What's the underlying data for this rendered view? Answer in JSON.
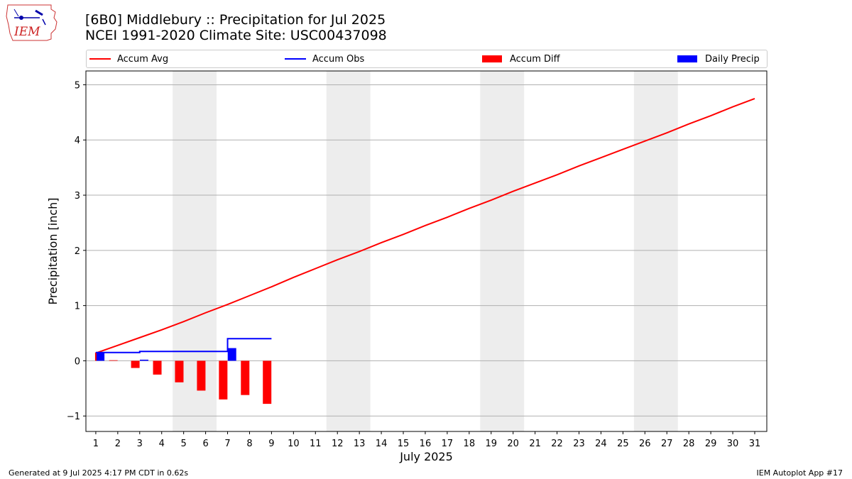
{
  "header": {
    "title_line1": "[6B0] Middlebury :: Precipitation for Jul 2025",
    "title_line2": "NCEI 1991-2020 Climate Site: USC00437098",
    "logo_text": "IEM"
  },
  "legend": {
    "accum_avg": "Accum Avg",
    "accum_obs": "Accum Obs",
    "accum_diff": "Accum Diff",
    "daily_precip": "Daily Precip"
  },
  "footer": {
    "generated": "Generated at 9 Jul 2025 4:17 PM CDT in 0.62s",
    "app": "IEM Autoplot App #17"
  },
  "colors": {
    "avg": "#ff0000",
    "obs": "#0000ff",
    "diff": "#ff0000",
    "daily": "#0000ff",
    "weekend_shade": "#ededed",
    "grid": "#b0b0b0"
  },
  "chart_data": {
    "type": "line",
    "xlabel": "July 2025",
    "ylabel": "Precipitation [inch]",
    "ylim": [
      -1.28,
      5.25
    ],
    "xlim": [
      0.55,
      31.55
    ],
    "yticks": [
      -1,
      0,
      1,
      2,
      3,
      4,
      5
    ],
    "ytick_labels": [
      "−1",
      "0",
      "1",
      "2",
      "3",
      "4",
      "5"
    ],
    "xticks": [
      1,
      2,
      3,
      4,
      5,
      6,
      7,
      8,
      9,
      10,
      11,
      12,
      13,
      14,
      15,
      16,
      17,
      18,
      19,
      20,
      21,
      22,
      23,
      24,
      25,
      26,
      27,
      28,
      29,
      30,
      31
    ],
    "grid": "horizontal",
    "legend_position": "top",
    "weekend_shading": [
      [
        4.5,
        6.5
      ],
      [
        11.5,
        13.5
      ],
      [
        18.5,
        20.5
      ],
      [
        25.5,
        27.5
      ]
    ],
    "accum_avg": {
      "x": [
        1,
        2,
        3,
        4,
        5,
        6,
        7,
        8,
        9,
        10,
        11,
        12,
        13,
        14,
        15,
        16,
        17,
        18,
        19,
        20,
        21,
        22,
        23,
        24,
        25,
        26,
        27,
        28,
        29,
        30,
        31
      ],
      "values": [
        0.14,
        0.28,
        0.42,
        0.56,
        0.71,
        0.87,
        1.02,
        1.18,
        1.34,
        1.51,
        1.67,
        1.83,
        1.98,
        2.14,
        2.29,
        2.45,
        2.6,
        2.76,
        2.91,
        3.07,
        3.22,
        3.37,
        3.53,
        3.68,
        3.83,
        3.98,
        4.13,
        4.29,
        4.44,
        4.6,
        4.75
      ]
    },
    "accum_obs": {
      "x": [
        1,
        2,
        3,
        4,
        5,
        6,
        7,
        8
      ],
      "values": [
        0.15,
        0.15,
        0.17,
        0.17,
        0.17,
        0.17,
        0.4,
        0.4
      ]
    },
    "accum_diff": {
      "x": [
        1,
        2,
        3,
        4,
        5,
        6,
        7,
        8
      ],
      "values": [
        0.01,
        -0.13,
        -0.25,
        -0.39,
        -0.54,
        -0.7,
        -0.62,
        -0.78
      ]
    },
    "daily_precip": {
      "x": [
        1,
        2,
        3,
        4,
        5,
        6,
        7,
        8
      ],
      "values": [
        0.15,
        0,
        0.02,
        0,
        0,
        0,
        0.23,
        0
      ]
    }
  }
}
